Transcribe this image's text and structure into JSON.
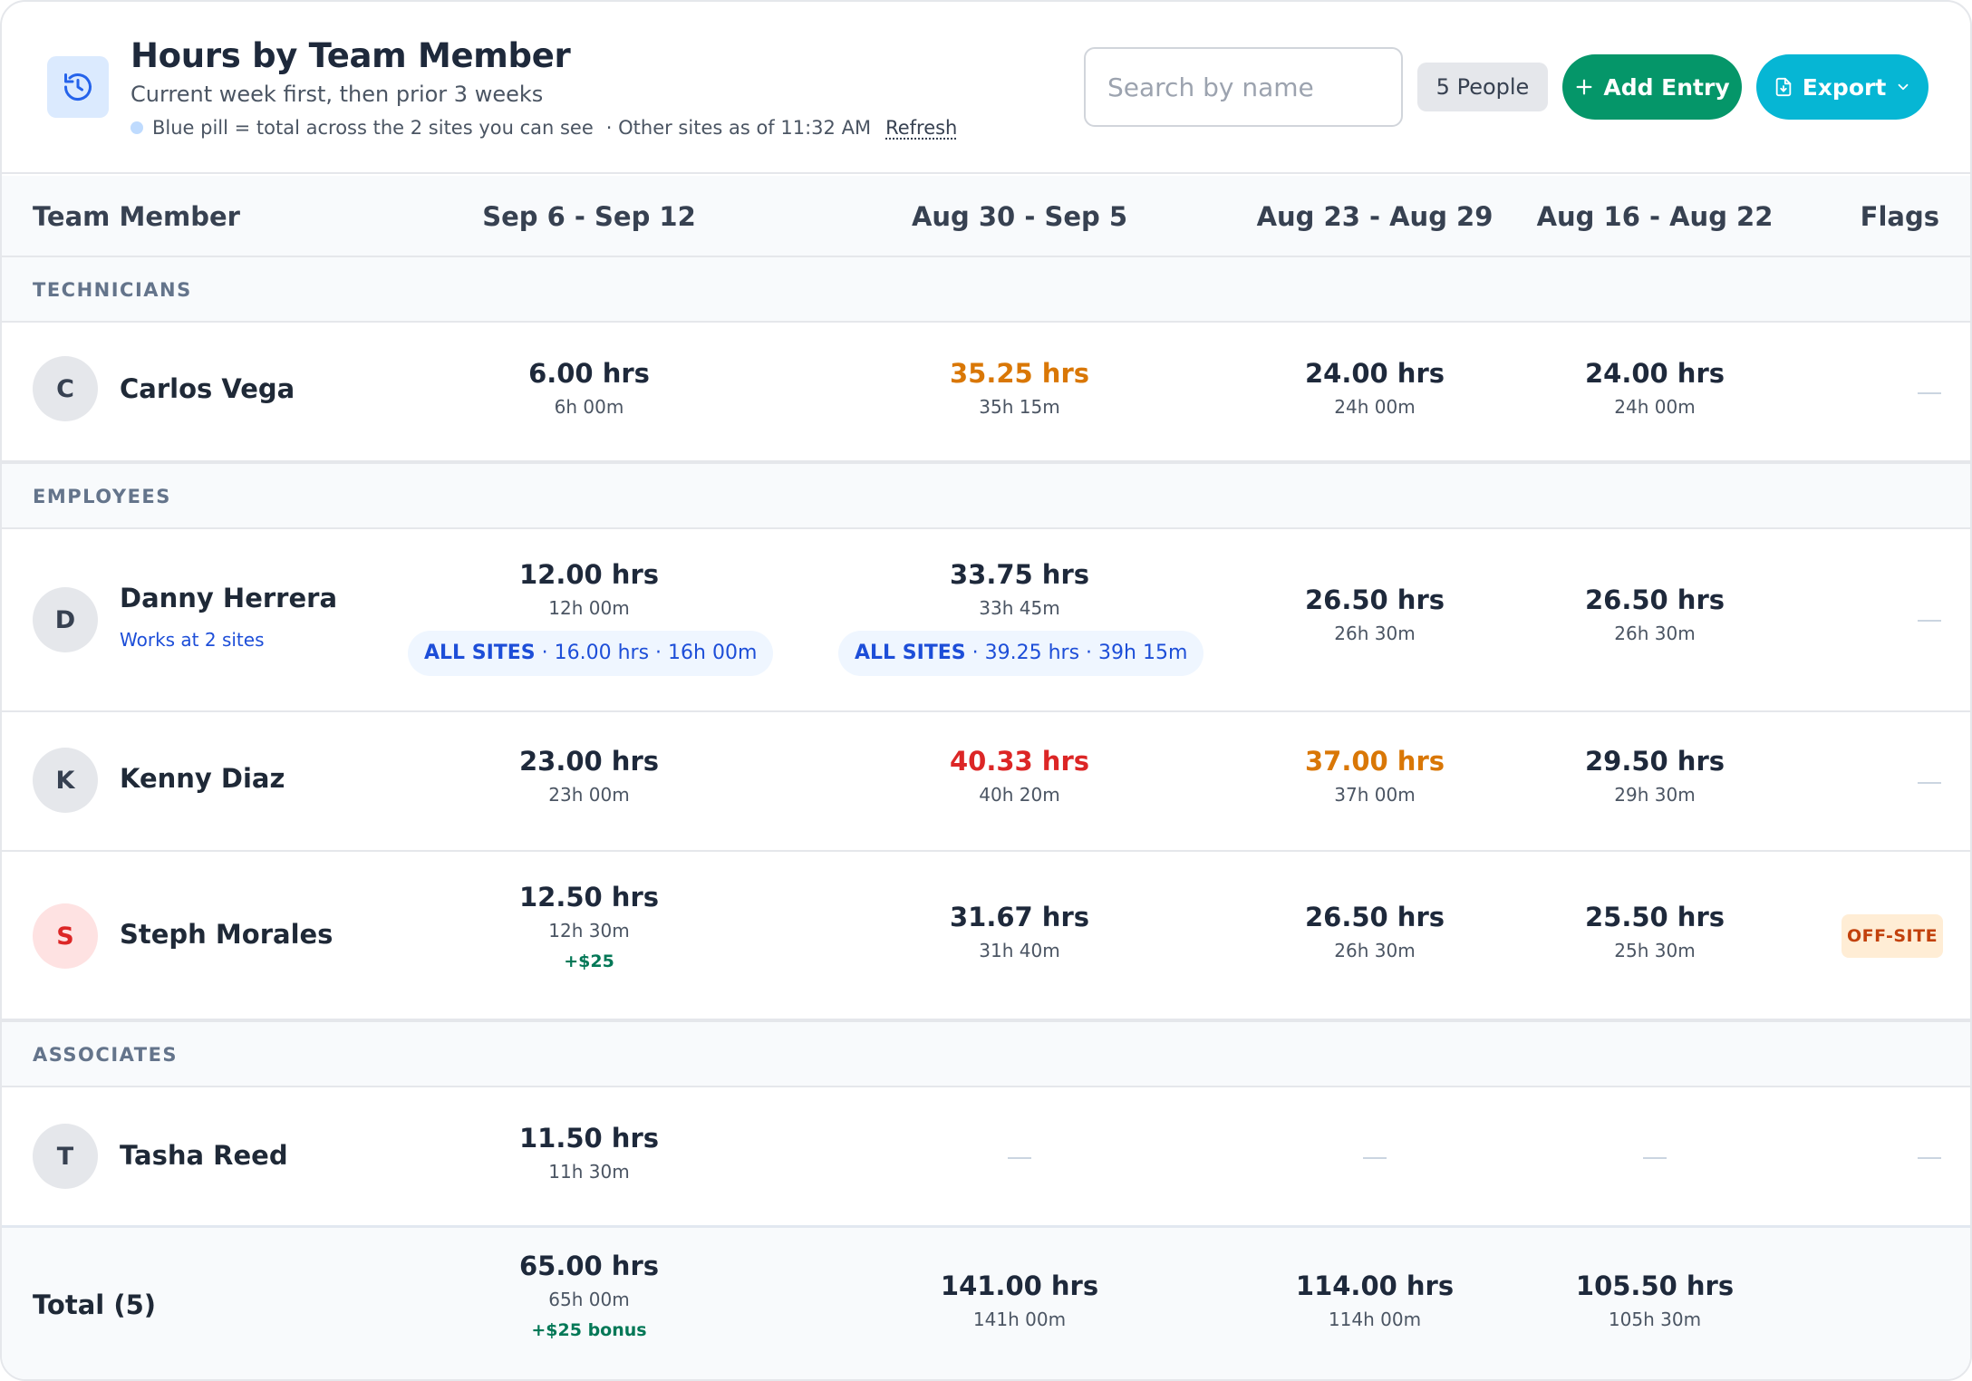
{
  "header": {
    "title": "Hours by Team Member",
    "subtitle": "Current week first, then prior 3 weeks",
    "note_blue_pill": "Blue pill = total across the 2 sites you can see",
    "note_other_sites": "· Other sites as of 11:32 AM",
    "refresh_label": "Refresh",
    "search_placeholder": "Search by name",
    "search_value": "",
    "people_count": "5 People",
    "add_entry_label": "Add Entry",
    "export_label": "Export"
  },
  "columns": {
    "member": "Team Member",
    "week1": "Sep 6 - Sep 12",
    "week2": "Aug 30 - Sep 5",
    "week3": "Aug 23 - Aug 29",
    "week4": "Aug 16 - Aug 22",
    "flags": "Flags"
  },
  "groups": {
    "technicians": "TECHNICIANS",
    "employees": "EMPLOYEES",
    "associates": "ASSOCIATES"
  },
  "rows": {
    "carlos": {
      "initial": "C",
      "name": "Carlos Vega",
      "w1": {
        "hrs": "6.00 hrs",
        "hm": "6h 00m"
      },
      "w2": {
        "hrs": "35.25 hrs",
        "hm": "35h 15m",
        "status": "warning"
      },
      "w3": {
        "hrs": "24.00 hrs",
        "hm": "24h 00m"
      },
      "w4": {
        "hrs": "24.00 hrs",
        "hm": "24h 00m"
      },
      "flag": "—"
    },
    "danny": {
      "initial": "D",
      "name": "Danny Herrera",
      "sub": "Works at 2 sites",
      "w1": {
        "hrs": "12.00 hrs",
        "hm": "12h 00m",
        "pill_label": "ALL SITES",
        "pill_detail": " · 16.00 hrs · 16h 00m"
      },
      "w2": {
        "hrs": "33.75 hrs",
        "hm": "33h 45m",
        "pill_label": "ALL SITES",
        "pill_detail": " · 39.25 hrs · 39h 15m"
      },
      "w3": {
        "hrs": "26.50 hrs",
        "hm": "26h 30m"
      },
      "w4": {
        "hrs": "26.50 hrs",
        "hm": "26h 30m"
      },
      "flag": "—"
    },
    "kenny": {
      "initial": "K",
      "name": "Kenny Diaz",
      "w1": {
        "hrs": "23.00 hrs",
        "hm": "23h 00m"
      },
      "w2": {
        "hrs": "40.33 hrs",
        "hm": "40h 20m",
        "status": "overtime"
      },
      "w3": {
        "hrs": "37.00 hrs",
        "hm": "37h 00m",
        "status": "warning"
      },
      "w4": {
        "hrs": "29.50 hrs",
        "hm": "29h 30m"
      },
      "flag": "—"
    },
    "steph": {
      "initial": "S",
      "name": "Steph Morales",
      "w1": {
        "hrs": "12.50 hrs",
        "hm": "12h 30m",
        "bonus": "+$25"
      },
      "w2": {
        "hrs": "31.67 hrs",
        "hm": "31h 40m"
      },
      "w3": {
        "hrs": "26.50 hrs",
        "hm": "26h 30m"
      },
      "w4": {
        "hrs": "25.50 hrs",
        "hm": "25h 30m"
      },
      "flag": "OFF-SITE"
    },
    "tasha": {
      "initial": "T",
      "name": "Tasha Reed",
      "w1": {
        "hrs": "11.50 hrs",
        "hm": "11h 30m"
      },
      "w2": "—",
      "w3": "—",
      "w4": "—",
      "flag": "—"
    }
  },
  "total": {
    "label": "Total (5)",
    "w1": {
      "hrs": "65.00 hrs",
      "hm": "65h 00m",
      "bonus": "+$25 bonus"
    },
    "w2": {
      "hrs": "141.00 hrs",
      "hm": "141h 00m"
    },
    "w3": {
      "hrs": "114.00 hrs",
      "hm": "114h 00m"
    },
    "w4": {
      "hrs": "105.50 hrs",
      "hm": "105h 30m"
    }
  },
  "colors": {
    "accent_green": "#059669",
    "accent_cyan": "#06b6d4",
    "warning_orange": "#d97706",
    "overtime_red": "#dc2626",
    "pill_blue": "#1d4ed8"
  },
  "icons": {
    "header": "history-clock-icon",
    "add": "plus-icon",
    "export": "file-download-icon",
    "export_menu": "chevron-down-icon"
  }
}
